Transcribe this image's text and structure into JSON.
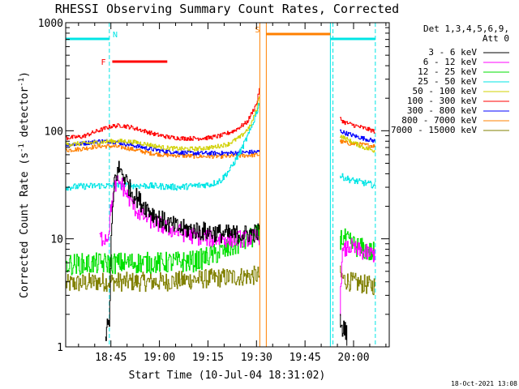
{
  "chart_data": {
    "type": "line",
    "title": "RHESSI Observing Summary Count Rates, Corrected",
    "xlabel": "Start Time (10-Jul-04 18:31:02)",
    "ylabel": "Corrected Count Rate (s",
    "ylabel_sup1": "-1",
    "ylabel_mid": " detector",
    "ylabel_sup2": "-1",
    "ylabel_end": ")",
    "yscale": "log",
    "ylim": [
      1,
      1000
    ],
    "y_ticks": [
      {
        "v": 1,
        "label": "1"
      },
      {
        "v": 10,
        "label": "10"
      },
      {
        "v": 100,
        "label": "100"
      },
      {
        "v": 1000,
        "label": "1000"
      }
    ],
    "xlim_min": [
      0,
      100
    ],
    "x_ticks": [
      {
        "v": 13.97,
        "label": "18:45"
      },
      {
        "v": 28.97,
        "label": "19:00"
      },
      {
        "v": 43.97,
        "label": "19:15"
      },
      {
        "v": 58.97,
        "label": "19:30"
      },
      {
        "v": 73.97,
        "label": "19:45"
      },
      {
        "v": 88.97,
        "label": "20:00"
      }
    ],
    "legend_header": [
      "Det 1,3,4,5,6,9,",
      "Att 0"
    ],
    "legend_position": "top-right",
    "timestamp": "18-Oct-2021 13:08",
    "flags": [
      {
        "label": "N",
        "color": "#00e5e5",
        "segments": [
          [
            0,
            13.5
          ],
          [
            81.9,
            95.7
          ]
        ],
        "level": 0.95
      },
      {
        "label": "F",
        "color": "#ff0000",
        "segments": [
          [
            14.4,
            31.4
          ]
        ],
        "level": 0.88
      },
      {
        "label": "S",
        "color": "#ff8000",
        "segments": [
          [
            62.0,
            81.8
          ]
        ],
        "level": 0.965
      }
    ],
    "vlines": [
      {
        "x": 0,
        "color": "#00e5e5",
        "dash": false
      },
      {
        "x": 13.5,
        "color": "#00e5e5",
        "dash": true
      },
      {
        "x": 60.0,
        "color": "#ff8000",
        "dash": false
      },
      {
        "x": 62.0,
        "color": "#ff8000",
        "dash": false
      },
      {
        "x": 81.8,
        "color": "#00e5e5",
        "dash": false
      },
      {
        "x": 82.6,
        "color": "#00e5e5",
        "dash": true
      },
      {
        "x": 95.7,
        "color": "#00e5e5",
        "dash": true
      }
    ],
    "series": [
      {
        "name": "3 - 6 keV",
        "color": "#000000",
        "noise": 0.09,
        "x": [
          0,
          11.5,
          12,
          13.5,
          14,
          15,
          16.5,
          18,
          20,
          23,
          27,
          31,
          35,
          40,
          45,
          50,
          55,
          60,
          61
        ],
        "y": [
          null,
          null,
          1.2,
          1.8,
          10,
          35,
          45,
          38,
          28,
          22,
          17,
          14,
          12.5,
          12,
          11.5,
          11,
          11,
          11.5,
          null
        ],
        "x2": [
          84.7,
          85.2,
          86,
          87
        ],
        "y2": [
          2.0,
          1.3,
          1.6,
          1.2
        ]
      },
      {
        "name": "6 - 12 keV",
        "color": "#ff00ff",
        "noise": 0.08,
        "x": [
          0,
          10,
          10.2,
          13,
          14,
          15.5,
          17,
          19,
          22,
          26,
          30,
          35,
          40,
          45,
          50,
          55,
          60,
          61
        ],
        "y": [
          null,
          null,
          10,
          10.5,
          20,
          33,
          33,
          25,
          18,
          15,
          13,
          11.5,
          10.5,
          10,
          10,
          10,
          10.5,
          null
        ],
        "x2": [
          84.7,
          85.3,
          86.5,
          88,
          90,
          92,
          94,
          95.7
        ],
        "y2": [
          2,
          7,
          8,
          8.5,
          7.8,
          7.5,
          7.3,
          7.2
        ]
      },
      {
        "name": "12 - 25 keV",
        "color": "#00e000",
        "noise": 0.1,
        "x": [
          0,
          10,
          20,
          30,
          40,
          45,
          50,
          55,
          60,
          61
        ],
        "y": [
          5.8,
          5.9,
          6.0,
          6.0,
          6.2,
          7,
          8,
          9.5,
          11,
          null
        ],
        "x2": [
          84.7,
          86,
          88,
          90,
          92,
          94,
          95.7
        ],
        "y2": [
          10,
          10,
          9,
          8.5,
          8,
          7.5,
          7.5
        ]
      },
      {
        "name": "25 - 50 keV",
        "color": "#00e5e5",
        "noise": 0.03,
        "x": [
          0,
          5,
          10,
          15,
          20,
          25,
          30,
          35,
          40,
          45,
          48,
          51,
          54,
          57,
          59,
          60,
          61
        ],
        "y": [
          30,
          30.5,
          31,
          31,
          31,
          31,
          30.5,
          30,
          31,
          32,
          35,
          45,
          65,
          100,
          150,
          190,
          null
        ],
        "x2": [
          84.7,
          86,
          88,
          90,
          92,
          94,
          95.7
        ],
        "y2": [
          38,
          37,
          35,
          34,
          33,
          32,
          31
        ]
      },
      {
        "name": "50 - 100 keV",
        "color": "#d0d000",
        "noise": 0.02,
        "x": [
          0,
          5,
          10,
          14,
          18,
          22,
          26,
          30,
          35,
          40,
          45,
          50,
          54,
          57,
          59,
          60,
          61
        ],
        "y": [
          75,
          76,
          78,
          80,
          80,
          78,
          74,
          70,
          68,
          68,
          70,
          75,
          88,
          110,
          160,
          230,
          null
        ],
        "x2": [
          84.7,
          86,
          88,
          90,
          92,
          94,
          95.7
        ],
        "y2": [
          90,
          86,
          80,
          75,
          70,
          67,
          65
        ]
      },
      {
        "name": "100 - 300 keV",
        "color": "#ff0000",
        "noise": 0.02,
        "x": [
          0,
          5,
          10,
          14,
          17,
          20,
          24,
          28,
          32,
          36,
          40,
          44,
          48,
          52,
          56,
          59,
          60,
          61
        ],
        "y": [
          86,
          88,
          100,
          110,
          112,
          108,
          100,
          92,
          87,
          85,
          85,
          86,
          90,
          100,
          120,
          180,
          260,
          null
        ],
        "x2": [
          84.7,
          86,
          88,
          90,
          92,
          94,
          95.7
        ],
        "y2": [
          130,
          120,
          115,
          110,
          106,
          102,
          98
        ]
      },
      {
        "name": "300 - 800 keV",
        "color": "#0000ff",
        "noise": 0.02,
        "x": [
          0,
          5,
          10,
          14,
          18,
          22,
          26,
          30,
          35,
          40,
          45,
          50,
          55,
          60,
          61
        ],
        "y": [
          74,
          76,
          80,
          80,
          76,
          72,
          68,
          65,
          63,
          62,
          62,
          62,
          63,
          64,
          null
        ],
        "x2": [
          84.7,
          86,
          88,
          90,
          92,
          94,
          95.7
        ],
        "y2": [
          100,
          96,
          92,
          88,
          85,
          82,
          80
        ]
      },
      {
        "name": "800 - 7000 keV",
        "color": "#ff8000",
        "noise": 0.02,
        "x": [
          0,
          5,
          10,
          14,
          18,
          22,
          26,
          30,
          35,
          40,
          45,
          50,
          55,
          60,
          61
        ],
        "y": [
          66,
          68,
          72,
          72,
          70,
          66,
          62,
          60,
          59,
          58,
          58,
          58,
          59,
          60,
          null
        ],
        "x2": [
          84.7,
          86,
          88,
          90,
          92,
          94,
          95.7
        ],
        "y2": [
          80,
          78,
          76,
          75,
          74,
          73,
          72
        ]
      },
      {
        "name": "7000 - 15000 keV",
        "color": "#808000",
        "noise": 0.09,
        "x": [
          0,
          10,
          20,
          30,
          40,
          50,
          60,
          61
        ],
        "y": [
          3.8,
          4.0,
          4.0,
          4.0,
          4.2,
          4.4,
          4.6,
          null
        ],
        "x2": [
          84.7,
          86,
          88,
          90,
          92,
          94,
          95.7
        ],
        "y2": [
          4.6,
          4.2,
          4.0,
          3.9,
          3.8,
          3.7,
          3.7
        ]
      }
    ]
  }
}
